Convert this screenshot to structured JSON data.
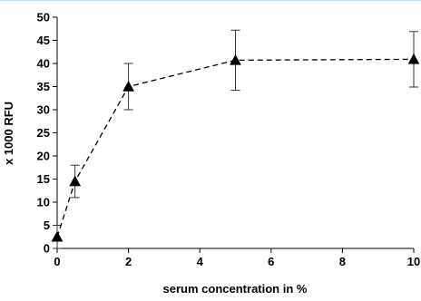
{
  "chart_data": {
    "type": "line",
    "title": "",
    "xlabel": "serum concentration in %",
    "ylabel": "x 1000 RFU",
    "xlim": [
      0,
      10
    ],
    "ylim": [
      0,
      50
    ],
    "x_ticks": [
      0,
      2,
      4,
      6,
      8,
      10
    ],
    "y_ticks": [
      0,
      5,
      10,
      15,
      20,
      25,
      30,
      35,
      40,
      45,
      50
    ],
    "grid": false,
    "legend": "none",
    "line_style": "dashed",
    "marker": "triangle",
    "colors": {
      "line": "#000000",
      "marker": "#000000",
      "error_bar": "#333333"
    },
    "series": [
      {
        "x": [
          0,
          0.5,
          2,
          5,
          10
        ],
        "y": [
          2.5,
          14.5,
          35,
          40.7,
          40.9
        ],
        "error": [
          2.5,
          3.5,
          5,
          6.5,
          6
        ]
      }
    ]
  }
}
